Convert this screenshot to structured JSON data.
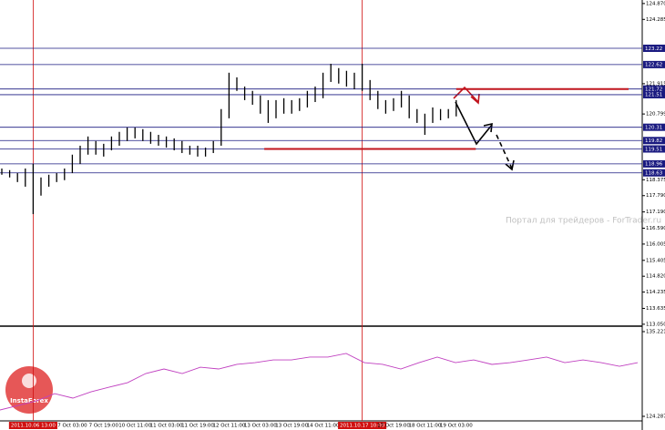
{
  "chart_data": [
    {
      "type": "ohlc",
      "categories": [
        null,
        null,
        null,
        null,
        "2011.10.06 13:00",
        null,
        null,
        null,
        null,
        "7 Oct 03:00",
        null,
        null,
        null,
        "7 Oct 19:00",
        null,
        null,
        null,
        "10 Oct 11:00",
        null,
        null,
        null,
        "11 Oct 03:00",
        null,
        null,
        null,
        "11 Oct 19:00",
        null,
        null,
        null,
        "12 Oct 11:00",
        null,
        null,
        null,
        "13 Oct 03:00",
        null,
        null,
        null,
        "13 Oct 19:00",
        null,
        null,
        null,
        "14 Oct 11:00",
        null,
        null,
        null,
        null,
        "2011.10.17 10:00",
        null,
        null,
        null,
        "17 Oct 19:00",
        null,
        null,
        null,
        "18 Oct 11:00",
        null,
        null,
        null,
        "19 Oct 03:00"
      ],
      "high": [
        118.79,
        118.73,
        118.62,
        118.79,
        118.96,
        118.46,
        118.56,
        118.62,
        118.79,
        119.3,
        119.63,
        119.97,
        119.8,
        119.7,
        119.97,
        120.14,
        120.3,
        120.3,
        120.24,
        120.14,
        120.03,
        119.97,
        119.9,
        119.8,
        119.63,
        119.63,
        119.56,
        119.8,
        120.98,
        122.32,
        122.15,
        121.81,
        121.65,
        121.48,
        121.31,
        121.31,
        121.38,
        121.31,
        121.38,
        121.65,
        121.81,
        122.32,
        122.65,
        122.49,
        122.39,
        122.32,
        122.65,
        122.05,
        121.65,
        121.31,
        121.38,
        121.65,
        121.48,
        120.98,
        120.81,
        121.04,
        120.98,
        120.98,
        121.31
      ],
      "low": [
        118.56,
        118.46,
        118.29,
        118.12,
        117.11,
        117.79,
        118.12,
        118.29,
        118.36,
        118.62,
        118.96,
        119.3,
        119.3,
        119.23,
        119.46,
        119.63,
        119.8,
        119.9,
        119.8,
        119.7,
        119.63,
        119.56,
        119.46,
        119.36,
        119.3,
        119.23,
        119.23,
        119.36,
        119.63,
        120.64,
        121.65,
        121.31,
        121.14,
        120.81,
        120.47,
        120.64,
        120.81,
        120.81,
        120.91,
        121.04,
        121.24,
        121.38,
        121.98,
        121.92,
        121.81,
        121.71,
        121.65,
        121.31,
        120.98,
        120.81,
        120.91,
        121.04,
        120.64,
        120.47,
        120.03,
        120.47,
        120.57,
        120.64,
        120.71
      ],
      "color": "#000000",
      "ylim": [
        112.98,
        125.0
      ],
      "yticks": [
        {
          "value": 124.87,
          "label": "124.870"
        },
        124.285,
        121.915,
        120.799,
        118.375,
        {
          "value": 117.79,
          "label": "117.790"
        },
        {
          "value": 117.19,
          "label": "117.190"
        },
        {
          "value": 116.59,
          "label": "116.590"
        },
        116.005,
        115.405,
        {
          "value": 114.82,
          "label": "114.820"
        },
        114.235,
        113.635,
        {
          "value": 113.05,
          "label": "113.050"
        }
      ],
      "levels": [
        123.22,
        122.62,
        121.72,
        121.51,
        120.31,
        119.82,
        119.51,
        118.96,
        118.63
      ],
      "level_color": "#1a1a80",
      "trend_lines": [
        {
          "y": 121.72,
          "from": 58,
          "to": 80
        },
        {
          "y": 119.51,
          "from": 33.5,
          "to": 60.5
        }
      ],
      "trend_color": "#c0141e",
      "crosshair_at": [
        4,
        46
      ],
      "crosshair_color": "#d01010"
    },
    {
      "type": "line",
      "values": [
        125.11,
        125.69,
        126.28,
        127.22,
        126.64,
        127.46,
        128.05,
        128.63,
        129.81,
        130.4,
        129.81,
        130.63,
        130.4,
        130.99,
        131.22,
        131.57,
        131.57,
        131.93,
        131.93,
        132.4,
        131.22,
        130.99,
        130.4,
        131.22,
        131.93,
        131.22,
        131.57,
        130.99,
        131.22,
        131.57,
        131.93,
        131.22,
        131.57,
        131.22,
        130.75,
        131.22
      ],
      "color": "#c040c0",
      "ylim": [
        123.7,
        135.69
      ],
      "yticks": [
        135.221,
        124.287
      ]
    }
  ],
  "watermark": "Портал для трейдеров - ForTrader.ru",
  "logo": "InstaForex"
}
